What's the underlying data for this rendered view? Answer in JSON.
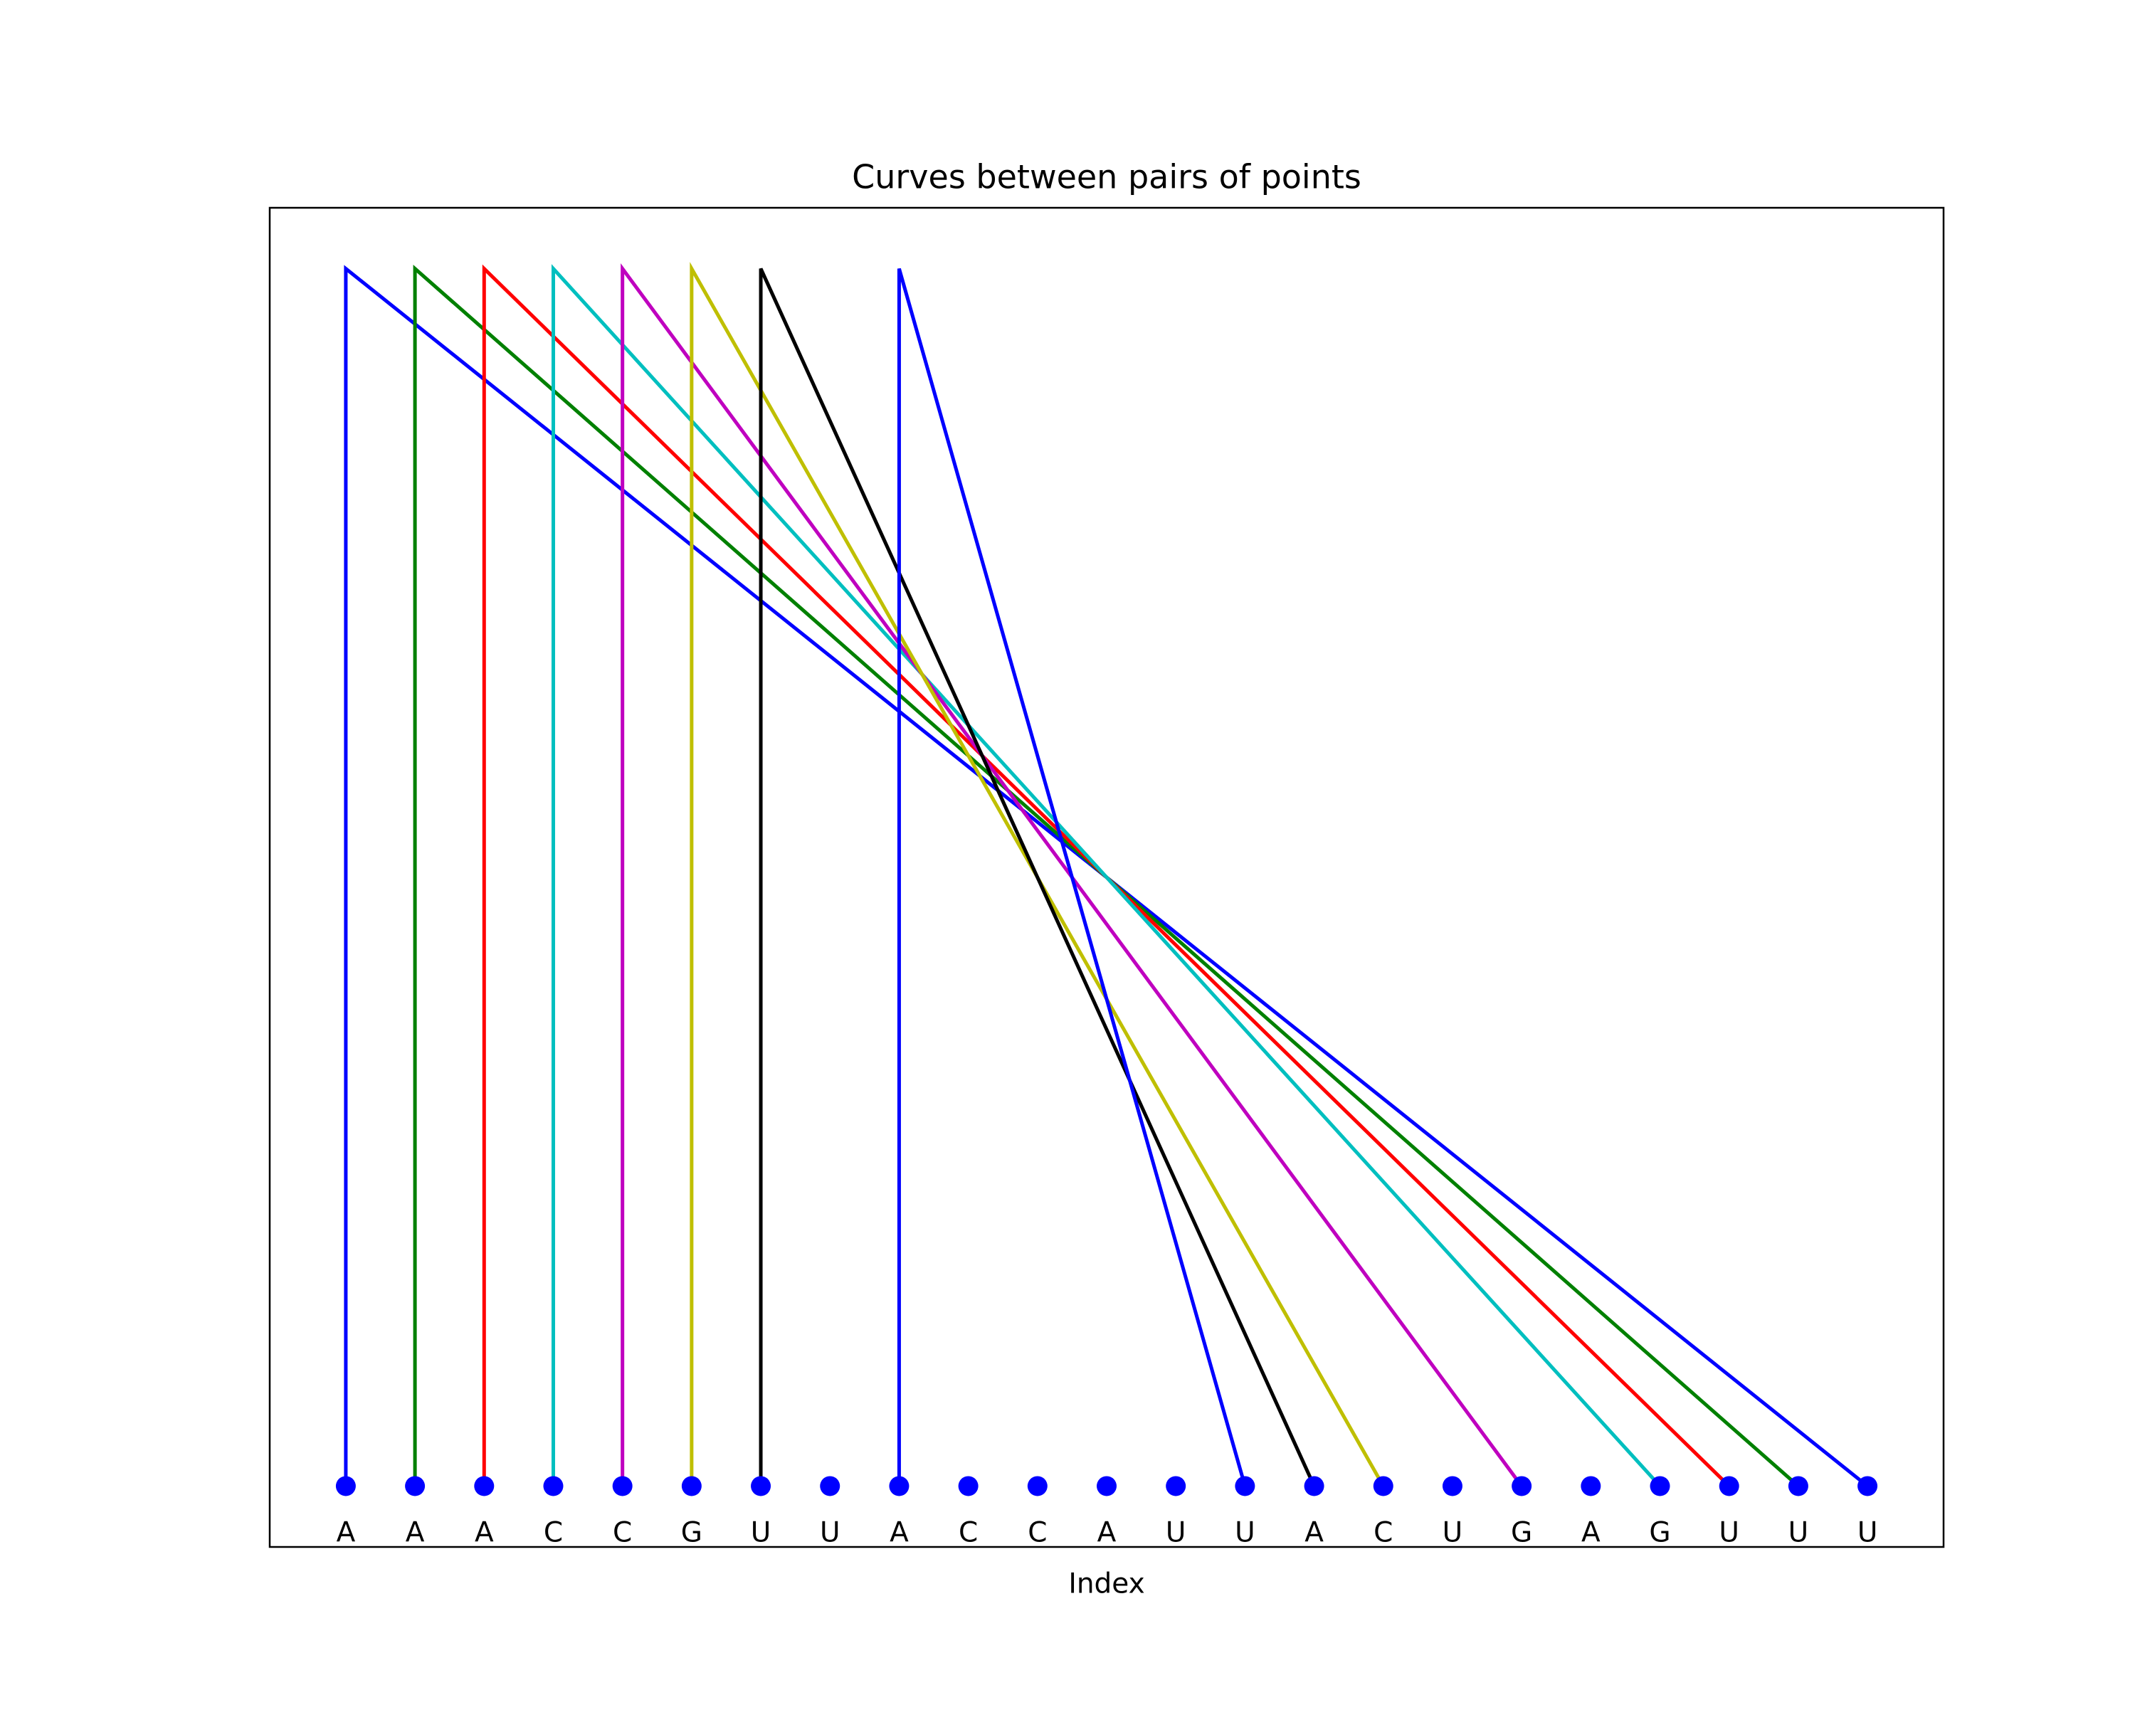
{
  "chart_data": {
    "type": "arc",
    "title": "Curves between pairs of points",
    "xlabel": "Index",
    "categories": [
      "A",
      "A",
      "A",
      "C",
      "C",
      "G",
      "U",
      "U",
      "A",
      "C",
      "C",
      "A",
      "U",
      "U",
      "A",
      "C",
      "U",
      "G",
      "A",
      "G",
      "U",
      "U",
      "U"
    ],
    "point_color": "#0000ff",
    "peak": 1,
    "xlim": [
      -1.1,
      23.1
    ],
    "ylim": [
      -0.05,
      1.05
    ],
    "pairs": [
      {
        "from": 0,
        "to": 22,
        "color": "#0000ff"
      },
      {
        "from": 1,
        "to": 21,
        "color": "#008000"
      },
      {
        "from": 2,
        "to": 20,
        "color": "#ff0000"
      },
      {
        "from": 3,
        "to": 19,
        "color": "#00bfbf"
      },
      {
        "from": 4,
        "to": 17,
        "color": "#bf00bf"
      },
      {
        "from": 5,
        "to": 15,
        "color": "#bfbf00"
      },
      {
        "from": 6,
        "to": 14,
        "color": "#000000"
      },
      {
        "from": 8,
        "to": 13,
        "color": "#0000ff"
      }
    ]
  }
}
